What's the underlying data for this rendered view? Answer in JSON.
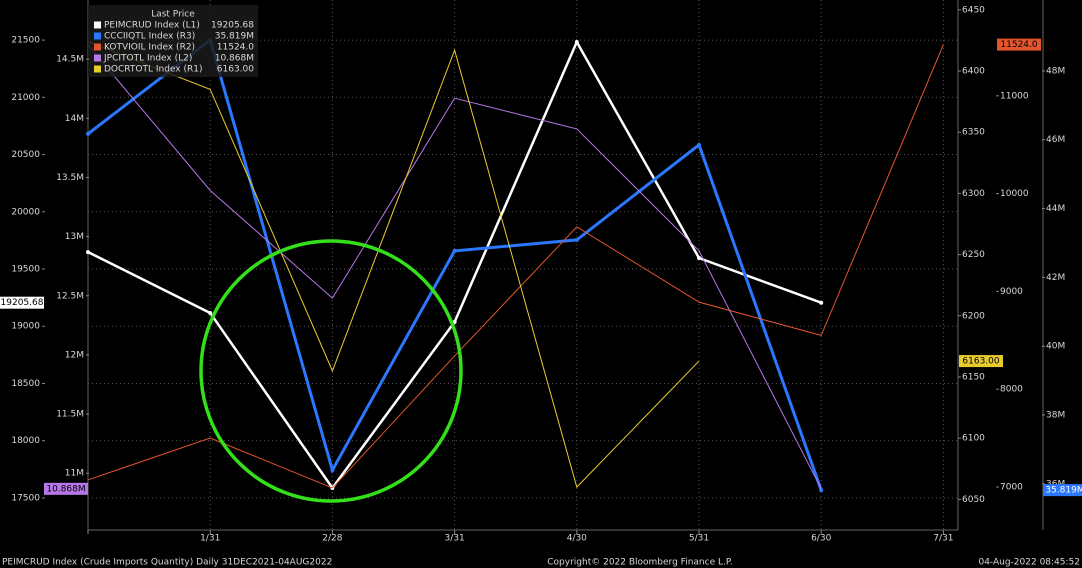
{
  "chart_data": {
    "type": "line",
    "legend_title": "Last Price",
    "categories": [
      null,
      "1/31",
      "2/28",
      "3/31",
      "4/30",
      "5/31",
      "6/30",
      "7/31"
    ],
    "grid": true,
    "axes": {
      "L1": {
        "ylim": [
          17220,
          21850
        ],
        "yticks": [
          17500,
          18000,
          18500,
          19000,
          19500,
          20000,
          20500,
          21000,
          21500
        ]
      },
      "L2": {
        "ylim": [
          10520000,
          15000000
        ],
        "yticks": [
          {
            "value": 11000000,
            "label": "11M"
          },
          {
            "value": 11500000,
            "label": "11.5M"
          },
          {
            "value": 12000000,
            "label": "12M"
          },
          {
            "value": 12500000,
            "label": "12.5M"
          },
          {
            "value": 13000000,
            "label": "13M"
          },
          {
            "value": 13500000,
            "label": "13.5M"
          },
          {
            "value": 14000000,
            "label": "14M"
          },
          {
            "value": 14500000,
            "label": "14.5M"
          }
        ]
      },
      "R1": {
        "ylim": [
          6025,
          6458
        ],
        "yticks": [
          6050,
          6100,
          6150,
          6200,
          6250,
          6300,
          6350,
          6400,
          6450
        ]
      },
      "R2": {
        "ylim": [
          6560,
          11980
        ],
        "yticks": [
          7000,
          8000,
          9000,
          10000,
          11000
        ]
      },
      "R3": {
        "ylim": [
          34660000,
          50060000
        ],
        "yticks": [
          {
            "value": 36000000,
            "label": "36M"
          },
          {
            "value": 38000000,
            "label": "38M"
          },
          {
            "value": 40000000,
            "label": "40M"
          },
          {
            "value": 42000000,
            "label": "42M"
          },
          {
            "value": 44000000,
            "label": "44M"
          },
          {
            "value": 46000000,
            "label": "46M"
          },
          {
            "value": 48000000,
            "label": "48M"
          }
        ]
      }
    },
    "series": [
      {
        "name": "PEIMCRUD Index (L1)",
        "last_price": "19205.68",
        "axis": "L1",
        "color": "#ffffff",
        "width": 2.5,
        "values": [
          19648,
          19116,
          17587,
          19037,
          21483,
          19596,
          19205.68,
          null
        ]
      },
      {
        "name": "CCCIIQTL Index (R3)",
        "last_price": "35.819M",
        "axis": "R3",
        "color": "#2a78ff",
        "width": 3,
        "values": [
          46170000,
          48900000,
          36400000,
          42770000,
          43090000,
          45850000,
          35819000,
          null
        ]
      },
      {
        "name": "KOTVIOIL Index (R2)",
        "last_price": "11524.0",
        "axis": "R2",
        "color": "#e2552e",
        "width": 1,
        "values": [
          7072,
          7501,
          6990,
          8340,
          9660,
          8890,
          8550,
          11524
        ]
      },
      {
        "name": "JPCITOTL Index (L2)",
        "last_price": "10.868M",
        "axis": "L2",
        "color": "#b777e6",
        "width": 1,
        "values": [
          14620000,
          13390000,
          12480000,
          14170000,
          13910000,
          12880000,
          10868000,
          null
        ]
      },
      {
        "name": "DOCRTOTL Index (R1)",
        "last_price": "6163.00",
        "axis": "R1",
        "color": "#e8cc2e",
        "width": 1,
        "values": [
          6424,
          6385,
          6155,
          6417,
          6060,
          6163,
          null,
          null
        ]
      }
    ],
    "footer_left": "PEIMCRUD Index (Crude Imports Quantity)  Daily 31DEC2021-04AUG2022",
    "footer_center": "Copyright© 2022 Bloomberg Finance L.P.",
    "footer_right": "04-Aug-2022 08:45:52"
  }
}
